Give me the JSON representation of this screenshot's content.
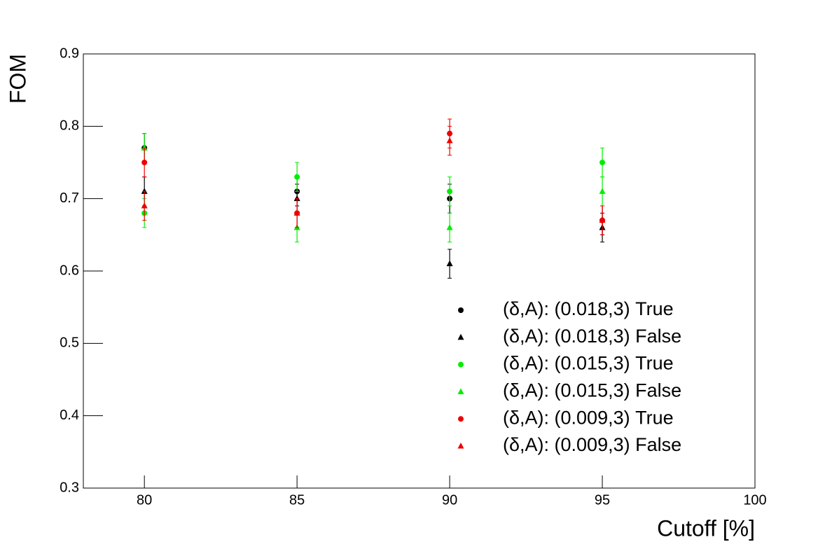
{
  "chart_data": {
    "type": "scatter",
    "x_label": "Cutoff [%]",
    "y_label": "FOM",
    "x": [
      80,
      85,
      90,
      95
    ],
    "series": [
      {
        "name": "(δ,A): (0.018,3) True",
        "color": "#000000",
        "marker": "circle",
        "values": [
          0.77,
          0.71,
          0.7,
          0.67
        ],
        "errors": [
          0.02,
          0.02,
          0.02,
          0.02
        ]
      },
      {
        "name": "(δ,A): (0.018,3) False",
        "color": "#000000",
        "marker": "triangle",
        "values": [
          0.71,
          0.7,
          0.61,
          0.66
        ],
        "errors": [
          0.02,
          0.02,
          0.02,
          0.02
        ]
      },
      {
        "name": "(δ,A): (0.015,3) True",
        "color": "#00ee00",
        "marker": "circle",
        "values": [
          0.68,
          0.73,
          0.71,
          0.75
        ],
        "errors": [
          0.02,
          0.02,
          0.02,
          0.02
        ]
      },
      {
        "name": "(δ,A): (0.015,3) False",
        "color": "#00ee00",
        "marker": "triangle",
        "values": [
          0.77,
          0.66,
          0.66,
          0.71
        ],
        "errors": [
          0.02,
          0.02,
          0.02,
          0.02
        ]
      },
      {
        "name": "(δ,A): (0.009,3) True",
        "color": "#ee0000",
        "marker": "circle",
        "values": [
          0.75,
          0.68,
          0.79,
          0.67
        ],
        "errors": [
          0.02,
          0.02,
          0.02,
          0.02
        ]
      },
      {
        "name": "(δ,A): (0.009,3) False",
        "color": "#ee0000",
        "marker": "triangle",
        "values": [
          0.69,
          0.68,
          0.78,
          0.67
        ],
        "errors": [
          0.02,
          0.02,
          0.02,
          0.02
        ]
      }
    ],
    "xlim": [
      78,
      100
    ],
    "xticks": [
      80,
      85,
      90,
      95,
      100
    ],
    "ylim": [
      0.3,
      0.9
    ],
    "yticks": [
      0.3,
      0.4,
      0.5,
      0.6,
      0.7,
      0.8,
      0.9
    ],
    "grid": false,
    "legend": "lower right"
  }
}
